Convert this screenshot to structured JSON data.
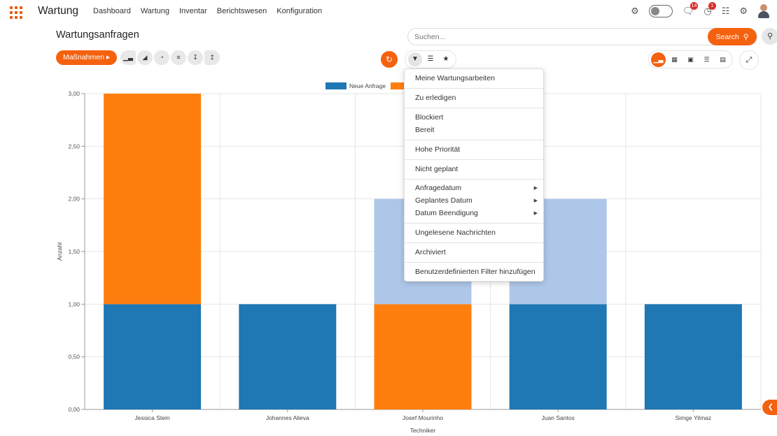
{
  "app": {
    "name": "Wartung",
    "nav": [
      "Dashboard",
      "Wartung",
      "Inventar",
      "Berichtswesen",
      "Konfiguration"
    ],
    "messages_badge": "14",
    "activity_badge": "1"
  },
  "page": {
    "title": "Wartungsanfragen",
    "actions_label": "Maßnahmen ▸",
    "search_placeholder": "Suchen...",
    "search_button": "Search"
  },
  "filter_menu": {
    "items": [
      "Meine Wartungsarbeiten",
      "Zu erledigen",
      "Blockiert",
      "Bereit",
      "Hohe Priorität",
      "Nicht geplant",
      "Anfragedatum",
      "Geplantes Datum",
      "Datum Beendigung",
      "Ungelesene Nachrichten",
      "Archiviert",
      "Benutzerdefinierten Filter hinzufügen"
    ]
  },
  "chart_data": {
    "type": "bar",
    "stacked": true,
    "categories": [
      "Jessica Stein",
      "Johannes Alieva",
      "Josef Mourinho",
      "Juan Santos",
      "Simge Yilmaz"
    ],
    "series": [
      {
        "name": "Neue Anfrage",
        "color": "#1f77b4",
        "values": [
          1,
          1,
          0,
          1,
          1
        ]
      },
      {
        "name": "",
        "color": "#ff7f0e",
        "values": [
          2,
          0,
          1,
          0,
          0
        ]
      },
      {
        "name": "",
        "color": "#aec7e8",
        "values": [
          0,
          0,
          1,
          1,
          0
        ]
      }
    ],
    "xlabel": "Techniker",
    "ylabel": "Anzahl",
    "ylim": [
      0,
      3
    ],
    "yticks": [
      "0,00",
      "0,50",
      "1,00",
      "1,50",
      "2,00",
      "2,50",
      "3,00"
    ],
    "grid": true,
    "legend": "top-center"
  }
}
